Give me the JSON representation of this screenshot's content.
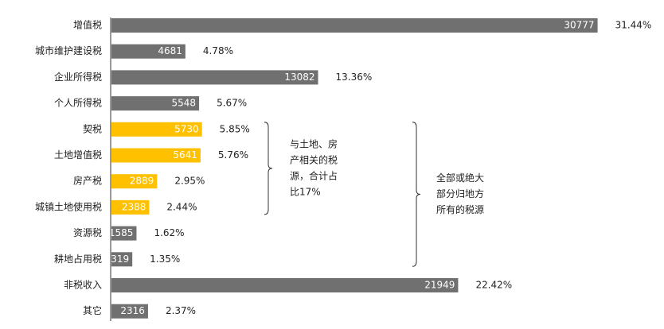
{
  "chart_data": {
    "type": "bar",
    "orientation": "horizontal",
    "categories": [
      "增值税",
      "城市维护建设税",
      "企业所得税",
      "个人所得税",
      "契税",
      "土地增值税",
      "房产税",
      "城镇土地使用税",
      "资源税",
      "耕地占用税",
      "非税收入",
      "其它"
    ],
    "values": [
      30777,
      4681,
      13082,
      5548,
      5730,
      5641,
      2889,
      2388,
      1585,
      1319,
      21949,
      2316
    ],
    "percent_labels": [
      "31.44%",
      "4.78%",
      "13.36%",
      "5.67%",
      "5.85%",
      "5.76%",
      "2.95%",
      "2.44%",
      "1.62%",
      "1.35%",
      "22.42%",
      "2.37%"
    ],
    "highlight": [
      false,
      false,
      false,
      false,
      true,
      true,
      true,
      true,
      false,
      false,
      false,
      false
    ],
    "colors": {
      "default": "#707070",
      "highlight": "#FFC000"
    },
    "xlim": [
      0,
      31000
    ],
    "grid": false,
    "annotations": [
      {
        "lines": [
          "与土地、房",
          "产相关的税",
          "源，合计占",
          "比17%"
        ],
        "span": [
          "契税",
          "城镇土地使用税"
        ]
      },
      {
        "lines": [
          "全部或绝大",
          "部分归地方",
          "所有的税源"
        ],
        "span": [
          "契税",
          "耕地占用税"
        ]
      }
    ]
  }
}
